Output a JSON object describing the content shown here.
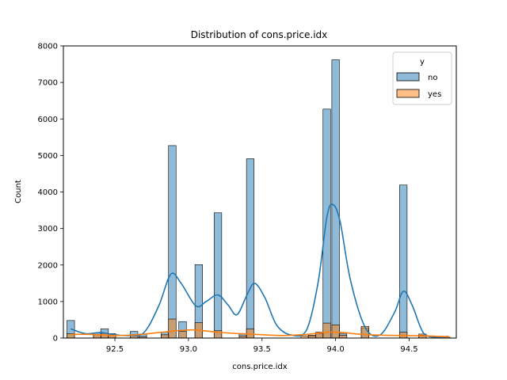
{
  "chart_data": {
    "type": "histogram",
    "title": "Distribution of cons.price.idx",
    "xlabel": "cons.price.idx",
    "ylabel": "Count",
    "xlim": [
      92.15,
      94.82
    ],
    "ylim": [
      0,
      8000
    ],
    "bin_width": 0.0516,
    "grid": false,
    "x_ticks": [
      92.5,
      93.0,
      93.5,
      94.0,
      94.5
    ],
    "x_tick_labels": [
      "92.5",
      "93.0",
      "93.5",
      "94.0",
      "94.5"
    ],
    "y_ticks": [
      0,
      1000,
      2000,
      3000,
      4000,
      5000,
      6000,
      7000,
      8000
    ],
    "y_tick_labels": [
      "0",
      "1000",
      "2000",
      "3000",
      "4000",
      "5000",
      "6000",
      "7000",
      "8000"
    ],
    "legend": {
      "title": "y",
      "position": "top-right",
      "entries": [
        "no",
        "yes"
      ]
    },
    "series": [
      {
        "name": "no",
        "color": "#1f77b4",
        "bins": [
          {
            "x": 92.2,
            "count": 480
          },
          {
            "x": 92.38,
            "count": 140
          },
          {
            "x": 92.43,
            "count": 250
          },
          {
            "x": 92.48,
            "count": 120
          },
          {
            "x": 92.63,
            "count": 180
          },
          {
            "x": 92.69,
            "count": 110
          },
          {
            "x": 92.84,
            "count": 160
          },
          {
            "x": 92.89,
            "count": 5270
          },
          {
            "x": 92.96,
            "count": 450
          },
          {
            "x": 93.07,
            "count": 2010
          },
          {
            "x": 93.2,
            "count": 3430
          },
          {
            "x": 93.37,
            "count": 110
          },
          {
            "x": 93.42,
            "count": 4910
          },
          {
            "x": 93.84,
            "count": 60
          },
          {
            "x": 93.89,
            "count": 120
          },
          {
            "x": 93.94,
            "count": 6270
          },
          {
            "x": 94.0,
            "count": 7620
          },
          {
            "x": 94.05,
            "count": 130
          },
          {
            "x": 94.2,
            "count": 280
          },
          {
            "x": 94.46,
            "count": 4190
          },
          {
            "x": 94.59,
            "count": 80
          },
          {
            "x": 94.74,
            "count": 50
          }
        ],
        "kde": [
          [
            92.2,
            250
          ],
          [
            92.3,
            120
          ],
          [
            92.4,
            150
          ],
          [
            92.5,
            90
          ],
          [
            92.6,
            70
          ],
          [
            92.7,
            160
          ],
          [
            92.8,
            900
          ],
          [
            92.88,
            1750
          ],
          [
            92.95,
            1500
          ],
          [
            93.05,
            880
          ],
          [
            93.12,
            1000
          ],
          [
            93.2,
            1180
          ],
          [
            93.27,
            900
          ],
          [
            93.33,
            640
          ],
          [
            93.4,
            1200
          ],
          [
            93.45,
            1500
          ],
          [
            93.52,
            1100
          ],
          [
            93.6,
            350
          ],
          [
            93.7,
            80
          ],
          [
            93.8,
            200
          ],
          [
            93.88,
            1500
          ],
          [
            93.94,
            3300
          ],
          [
            93.98,
            3660
          ],
          [
            94.03,
            3200
          ],
          [
            94.1,
            1600
          ],
          [
            94.2,
            300
          ],
          [
            94.3,
            80
          ],
          [
            94.4,
            700
          ],
          [
            94.46,
            1280
          ],
          [
            94.52,
            900
          ],
          [
            94.6,
            120
          ],
          [
            94.7,
            20
          ],
          [
            94.78,
            5
          ]
        ]
      },
      {
        "name": "yes",
        "color": "#ff7f0e",
        "bins": [
          {
            "x": 92.2,
            "count": 120
          },
          {
            "x": 92.38,
            "count": 90
          },
          {
            "x": 92.43,
            "count": 130
          },
          {
            "x": 92.48,
            "count": 70
          },
          {
            "x": 92.63,
            "count": 70
          },
          {
            "x": 92.69,
            "count": 40
          },
          {
            "x": 92.84,
            "count": 90
          },
          {
            "x": 92.89,
            "count": 520
          },
          {
            "x": 92.96,
            "count": 180
          },
          {
            "x": 93.07,
            "count": 420
          },
          {
            "x": 93.2,
            "count": 200
          },
          {
            "x": 93.37,
            "count": 60
          },
          {
            "x": 93.42,
            "count": 250
          },
          {
            "x": 93.79,
            "count": 60
          },
          {
            "x": 93.84,
            "count": 80
          },
          {
            "x": 93.89,
            "count": 160
          },
          {
            "x": 93.94,
            "count": 410
          },
          {
            "x": 94.0,
            "count": 360
          },
          {
            "x": 94.05,
            "count": 80
          },
          {
            "x": 94.2,
            "count": 320
          },
          {
            "x": 94.46,
            "count": 160
          },
          {
            "x": 94.59,
            "count": 110
          },
          {
            "x": 94.74,
            "count": 40
          }
        ],
        "kde": [
          [
            92.2,
            100
          ],
          [
            92.35,
            100
          ],
          [
            92.5,
            70
          ],
          [
            92.65,
            90
          ],
          [
            92.8,
            150
          ],
          [
            92.95,
            210
          ],
          [
            93.05,
            220
          ],
          [
            93.2,
            160
          ],
          [
            93.35,
            120
          ],
          [
            93.5,
            90
          ],
          [
            93.65,
            70
          ],
          [
            93.8,
            100
          ],
          [
            93.95,
            160
          ],
          [
            94.05,
            150
          ],
          [
            94.15,
            110
          ],
          [
            94.3,
            80
          ],
          [
            94.45,
            70
          ],
          [
            94.6,
            60
          ],
          [
            94.78,
            30
          ]
        ]
      }
    ]
  }
}
